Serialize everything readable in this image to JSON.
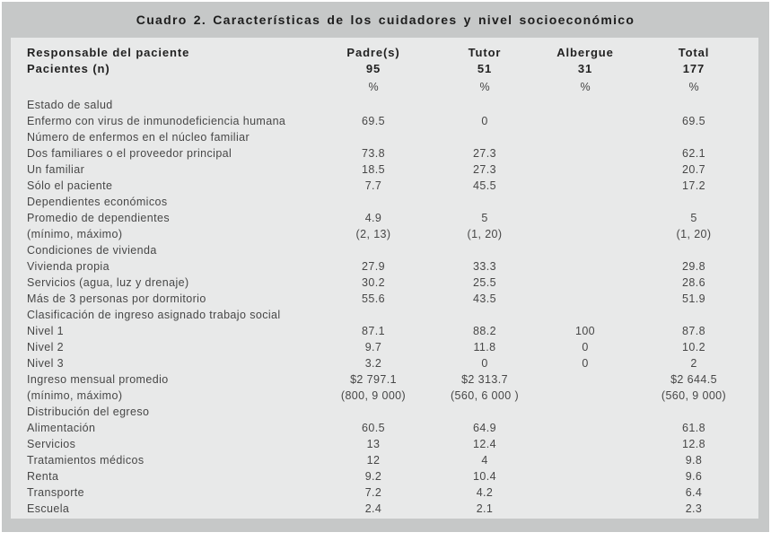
{
  "title": "Cuadro 2. Características de los cuidadores y nivel socioeconómico",
  "table": {
    "header": {
      "row1_label": "Responsable del paciente",
      "row2_label": "Pacientes (n)",
      "columns": [
        "Padre(s)",
        "Tutor",
        "Albergue",
        "Total"
      ],
      "counts": [
        "95",
        "51",
        "31",
        "177"
      ],
      "percent_signs": [
        "%",
        "%",
        "%",
        "%"
      ]
    },
    "rows": [
      {
        "label": "Estado de salud",
        "section": true,
        "values": [
          "",
          "",
          "",
          ""
        ]
      },
      {
        "label": "Enfermo con virus de inmunodeficiencia humana",
        "values": [
          "69.5",
          "0",
          "",
          "69.5"
        ]
      },
      {
        "label": "Número de enfermos en el núcleo familiar",
        "section": true,
        "values": [
          "",
          "",
          "",
          ""
        ]
      },
      {
        "label": "Dos familiares o el proveedor principal",
        "values": [
          "73.8",
          "27.3",
          "",
          "62.1"
        ]
      },
      {
        "label": "Un familiar",
        "values": [
          "18.5",
          "27.3",
          "",
          "20.7"
        ]
      },
      {
        "label": "Sólo el paciente",
        "values": [
          "7.7",
          "45.5",
          "",
          "17.2"
        ]
      },
      {
        "label": "Dependientes económicos",
        "section": true,
        "values": [
          "",
          "",
          "",
          ""
        ]
      },
      {
        "label": "Promedio de dependientes",
        "values": [
          "4.9",
          "5",
          "",
          "5"
        ]
      },
      {
        "label": "(mínimo, máximo)",
        "values": [
          "(2, 13)",
          "(1, 20)",
          "",
          "(1, 20)"
        ]
      },
      {
        "label": "Condiciones de vivienda",
        "section": true,
        "values": [
          "",
          "",
          "",
          ""
        ]
      },
      {
        "label": "Vivienda propia",
        "values": [
          "27.9",
          "33.3",
          "",
          "29.8"
        ]
      },
      {
        "label": "Servicios (agua, luz y drenaje)",
        "values": [
          "30.2",
          "25.5",
          "",
          "28.6"
        ]
      },
      {
        "label": "Más de 3 personas por dormitorio",
        "values": [
          "55.6",
          "43.5",
          "",
          "51.9"
        ]
      },
      {
        "label": "Clasificación de ingreso asignado trabajo social",
        "section": true,
        "values": [
          "",
          "",
          "",
          ""
        ]
      },
      {
        "label": "Nivel 1",
        "values": [
          "87.1",
          "88.2",
          "100",
          "87.8"
        ]
      },
      {
        "label": "Nivel 2",
        "values": [
          "9.7",
          "11.8",
          "0",
          "10.2"
        ]
      },
      {
        "label": "Nivel 3",
        "values": [
          "3.2",
          "0",
          "0",
          "2"
        ]
      },
      {
        "label": "Ingreso mensual promedio",
        "values": [
          "$2 797.1",
          "$2 313.7",
          "",
          "$2 644.5"
        ]
      },
      {
        "label": "(mínimo, máximo)",
        "values": [
          "(800, 9 000)",
          "(560, 6 000 )",
          "",
          "(560, 9 000)"
        ]
      },
      {
        "label": "Distribución del egreso",
        "section": true,
        "values": [
          "",
          "",
          "",
          ""
        ]
      },
      {
        "label": "Alimentación",
        "values": [
          "60.5",
          "64.9",
          "",
          "61.8"
        ]
      },
      {
        "label": "Servicios",
        "values": [
          "13",
          "12.4",
          "",
          "12.8"
        ]
      },
      {
        "label": "Tratamientos médicos",
        "values": [
          "12",
          "4",
          "",
          "9.8"
        ]
      },
      {
        "label": "Renta",
        "values": [
          "9.2",
          "10.4",
          "",
          "9.6"
        ]
      },
      {
        "label": "Transporte",
        "values": [
          "7.2",
          "4.2",
          "",
          "6.4"
        ]
      },
      {
        "label": "Escuela",
        "values": [
          "2.4",
          "2.1",
          "",
          "2.3"
        ]
      }
    ]
  },
  "colors": {
    "panel_gray": "#c6c8c8",
    "table_background": "#e8e9e9",
    "heading_text": "#222222",
    "body_text": "#474747"
  }
}
